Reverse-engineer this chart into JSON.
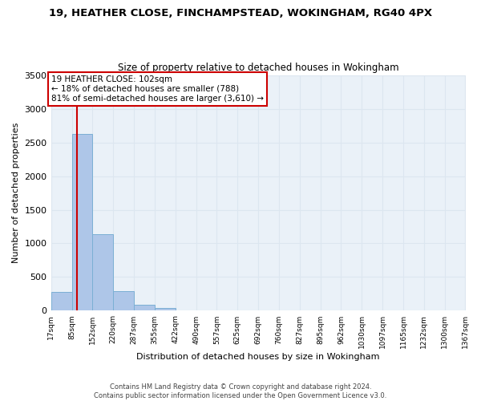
{
  "title1": "19, HEATHER CLOSE, FINCHAMPSTEAD, WOKINGHAM, RG40 4PX",
  "title2": "Size of property relative to detached houses in Wokingham",
  "xlabel": "Distribution of detached houses by size in Wokingham",
  "ylabel": "Number of detached properties",
  "bar_edges": [
    17,
    85,
    152,
    220,
    287,
    355,
    422,
    490,
    557,
    625,
    692,
    760,
    827,
    895,
    962,
    1030,
    1097,
    1165,
    1232,
    1300,
    1367
  ],
  "bar_heights": [
    280,
    2630,
    1140,
    295,
    90,
    40,
    10,
    0,
    0,
    0,
    0,
    0,
    0,
    0,
    0,
    0,
    0,
    0,
    0,
    0
  ],
  "bar_color": "#aec6e8",
  "bar_edge_color": "#7bafd4",
  "property_size": 102,
  "annotation_text": "19 HEATHER CLOSE: 102sqm\n← 18% of detached houses are smaller (788)\n81% of semi-detached houses are larger (3,610) →",
  "annotation_box_color": "#ffffff",
  "annotation_box_edge_color": "#cc0000",
  "vline_color": "#cc0000",
  "ylim": [
    0,
    3500
  ],
  "yticks": [
    0,
    500,
    1000,
    1500,
    2000,
    2500,
    3000,
    3500
  ],
  "tick_labels": [
    "17sqm",
    "85sqm",
    "152sqm",
    "220sqm",
    "287sqm",
    "355sqm",
    "422sqm",
    "490sqm",
    "557sqm",
    "625sqm",
    "692sqm",
    "760sqm",
    "827sqm",
    "895sqm",
    "962sqm",
    "1030sqm",
    "1097sqm",
    "1165sqm",
    "1232sqm",
    "1300sqm",
    "1367sqm"
  ],
  "footer_text": "Contains HM Land Registry data © Crown copyright and database right 2024.\nContains public sector information licensed under the Open Government Licence v3.0.",
  "grid_color": "#dce6f0",
  "background_color": "#eaf1f8"
}
